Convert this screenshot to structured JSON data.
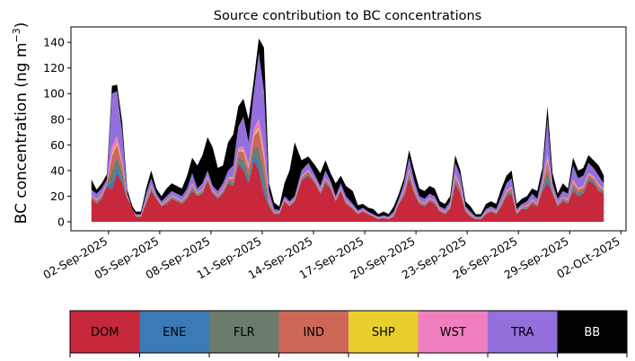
{
  "chart_data": {
    "type": "area",
    "title": "Source contribution to BC concentrations",
    "ylabel": "BC concentration (ng m",
    "ylabel_unit_sup": "−3",
    "ylabel_close": ")",
    "xlabel": "",
    "ylim": [
      -7,
      152
    ],
    "yticks": [
      0,
      20,
      40,
      60,
      80,
      100,
      120,
      140
    ],
    "x_start_day": 0,
    "x_end_day": 30,
    "xlim": [
      -1.2,
      31.3
    ],
    "xticks": [
      {
        "day": 1.0,
        "label": "02-Sep-2025"
      },
      {
        "day": 4.0,
        "label": "05-Sep-2025"
      },
      {
        "day": 7.0,
        "label": "08-Sep-2025"
      },
      {
        "day": 10.0,
        "label": "11-Sep-2025"
      },
      {
        "day": 13.0,
        "label": "14-Sep-2025"
      },
      {
        "day": 16.0,
        "label": "17-Sep-2025"
      },
      {
        "day": 19.0,
        "label": "20-Sep-2025"
      },
      {
        "day": 22.0,
        "label": "23-Sep-2025"
      },
      {
        "day": 25.0,
        "label": "26-Sep-2025"
      },
      {
        "day": 28.0,
        "label": "29-Sep-2025"
      },
      {
        "day": 31.0,
        "label": "02-Oct-2025"
      }
    ],
    "note": "Stacked areas; keyframes are [day, value] for DOM and for cumulative tops of TRA (all sources except BB) and total (with BB). ENE, FLR, IND, SHP, WST are thin layers between DOM and TRA.",
    "series": [
      {
        "name": "DOM",
        "color": "#c8283b",
        "keyframes": [
          [
            0,
            18
          ],
          [
            0.3,
            14
          ],
          [
            0.6,
            18
          ],
          [
            0.9,
            28
          ],
          [
            1.2,
            25
          ],
          [
            1.5,
            38
          ],
          [
            1.8,
            30
          ],
          [
            2.1,
            18
          ],
          [
            2.4,
            12
          ],
          [
            2.6,
            4
          ],
          [
            2.9,
            4
          ],
          [
            3.2,
            14
          ],
          [
            3.5,
            24
          ],
          [
            3.8,
            18
          ],
          [
            4.1,
            12
          ],
          [
            4.4,
            14
          ],
          [
            4.7,
            18
          ],
          [
            5.0,
            16
          ],
          [
            5.3,
            14
          ],
          [
            5.6,
            18
          ],
          [
            5.9,
            24
          ],
          [
            6.2,
            20
          ],
          [
            6.5,
            22
          ],
          [
            6.8,
            32
          ],
          [
            7.1,
            22
          ],
          [
            7.4,
            18
          ],
          [
            7.7,
            22
          ],
          [
            8.0,
            30
          ],
          [
            8.3,
            28
          ],
          [
            8.6,
            45
          ],
          [
            8.9,
            40
          ],
          [
            9.2,
            30
          ],
          [
            9.5,
            48
          ],
          [
            9.8,
            40
          ],
          [
            10.1,
            22
          ],
          [
            10.4,
            12
          ],
          [
            10.7,
            6
          ],
          [
            11.0,
            6
          ],
          [
            11.3,
            16
          ],
          [
            11.6,
            12
          ],
          [
            11.9,
            16
          ],
          [
            12.3,
            32
          ],
          [
            12.7,
            36
          ],
          [
            13.1,
            30
          ],
          [
            13.4,
            22
          ],
          [
            13.7,
            30
          ],
          [
            14.0,
            26
          ],
          [
            14.3,
            16
          ],
          [
            14.6,
            24
          ],
          [
            14.9,
            14
          ],
          [
            15.3,
            10
          ],
          [
            15.6,
            6
          ],
          [
            15.9,
            8
          ],
          [
            16.2,
            6
          ],
          [
            16.5,
            4
          ],
          [
            16.8,
            2
          ],
          [
            17.1,
            3
          ],
          [
            17.4,
            2
          ],
          [
            17.7,
            4
          ],
          [
            18.0,
            14
          ],
          [
            18.3,
            20
          ],
          [
            18.6,
            34
          ],
          [
            18.9,
            22
          ],
          [
            19.2,
            14
          ],
          [
            19.5,
            12
          ],
          [
            19.8,
            16
          ],
          [
            20.1,
            14
          ],
          [
            20.4,
            8
          ],
          [
            20.7,
            6
          ],
          [
            21.0,
            10
          ],
          [
            21.3,
            30
          ],
          [
            21.6,
            22
          ],
          [
            21.9,
            8
          ],
          [
            22.2,
            4
          ],
          [
            22.5,
            2
          ],
          [
            22.8,
            2
          ],
          [
            23.1,
            6
          ],
          [
            23.4,
            8
          ],
          [
            23.7,
            6
          ],
          [
            24.0,
            12
          ],
          [
            24.3,
            20
          ],
          [
            24.6,
            22
          ],
          [
            24.9,
            6
          ],
          [
            25.2,
            10
          ],
          [
            25.5,
            10
          ],
          [
            25.8,
            14
          ],
          [
            26.1,
            12
          ],
          [
            26.4,
            24
          ],
          [
            26.7,
            30
          ],
          [
            27.0,
            22
          ],
          [
            27.3,
            12
          ],
          [
            27.6,
            16
          ],
          [
            27.9,
            14
          ],
          [
            28.2,
            24
          ],
          [
            28.5,
            20
          ],
          [
            28.8,
            22
          ],
          [
            29.1,
            32
          ],
          [
            29.4,
            30
          ],
          [
            29.7,
            24
          ],
          [
            30,
            22
          ]
        ]
      },
      {
        "name": "ENE",
        "color": "#3b7bb5",
        "keyframes": []
      },
      {
        "name": "FLR",
        "color": "#6b7b6c",
        "keyframes": []
      },
      {
        "name": "IND",
        "color": "#cd6858",
        "keyframes": []
      },
      {
        "name": "SHP",
        "color": "#e8cf2d",
        "keyframes": []
      },
      {
        "name": "WST",
        "color": "#f07fc0",
        "keyframes": []
      },
      {
        "name": "TRA",
        "color": "#9370db",
        "keyframes": [
          [
            0,
            25
          ],
          [
            0.3,
            22
          ],
          [
            0.6,
            26
          ],
          [
            0.9,
            33
          ],
          [
            1.2,
            100
          ],
          [
            1.5,
            102
          ],
          [
            1.8,
            70
          ],
          [
            2.1,
            22
          ],
          [
            2.4,
            10
          ],
          [
            2.6,
            6
          ],
          [
            2.9,
            6
          ],
          [
            3.2,
            22
          ],
          [
            3.5,
            34
          ],
          [
            3.8,
            22
          ],
          [
            4.1,
            16
          ],
          [
            4.4,
            20
          ],
          [
            4.7,
            24
          ],
          [
            5.0,
            22
          ],
          [
            5.3,
            20
          ],
          [
            5.6,
            26
          ],
          [
            5.9,
            38
          ],
          [
            6.2,
            26
          ],
          [
            6.5,
            30
          ],
          [
            6.8,
            40
          ],
          [
            7.1,
            28
          ],
          [
            7.4,
            24
          ],
          [
            7.7,
            30
          ],
          [
            8.0,
            40
          ],
          [
            8.3,
            44
          ],
          [
            8.6,
            74
          ],
          [
            8.9,
            82
          ],
          [
            9.2,
            62
          ],
          [
            9.5,
            100
          ],
          [
            9.8,
            132
          ],
          [
            10.1,
            102
          ],
          [
            10.4,
            24
          ],
          [
            10.7,
            10
          ],
          [
            11.0,
            9
          ],
          [
            11.3,
            20
          ],
          [
            11.6,
            16
          ],
          [
            11.9,
            20
          ],
          [
            12.3,
            40
          ],
          [
            12.7,
            46
          ],
          [
            13.1,
            36
          ],
          [
            13.4,
            28
          ],
          [
            13.7,
            40
          ],
          [
            14.0,
            32
          ],
          [
            14.3,
            20
          ],
          [
            14.6,
            30
          ],
          [
            14.9,
            20
          ],
          [
            15.3,
            14
          ],
          [
            15.6,
            9
          ],
          [
            15.9,
            11
          ],
          [
            16.2,
            8
          ],
          [
            16.5,
            6
          ],
          [
            16.8,
            4
          ],
          [
            17.1,
            5
          ],
          [
            17.4,
            4
          ],
          [
            17.7,
            8
          ],
          [
            18.0,
            18
          ],
          [
            18.3,
            30
          ],
          [
            18.6,
            50
          ],
          [
            18.9,
            32
          ],
          [
            19.2,
            20
          ],
          [
            19.5,
            18
          ],
          [
            19.8,
            22
          ],
          [
            20.1,
            20
          ],
          [
            20.4,
            12
          ],
          [
            20.7,
            10
          ],
          [
            21.0,
            16
          ],
          [
            21.3,
            46
          ],
          [
            21.6,
            36
          ],
          [
            21.9,
            12
          ],
          [
            22.2,
            8
          ],
          [
            22.5,
            4
          ],
          [
            22.8,
            4
          ],
          [
            23.1,
            10
          ],
          [
            23.4,
            12
          ],
          [
            23.7,
            10
          ],
          [
            24.0,
            20
          ],
          [
            24.3,
            30
          ],
          [
            24.6,
            34
          ],
          [
            24.9,
            10
          ],
          [
            25.2,
            14
          ],
          [
            25.5,
            16
          ],
          [
            25.8,
            22
          ],
          [
            26.1,
            18
          ],
          [
            26.4,
            36
          ],
          [
            26.7,
            80
          ],
          [
            27.0,
            30
          ],
          [
            27.3,
            18
          ],
          [
            27.6,
            24
          ],
          [
            27.9,
            22
          ],
          [
            28.2,
            44
          ],
          [
            28.5,
            34
          ],
          [
            28.8,
            36
          ],
          [
            29.1,
            46
          ],
          [
            29.4,
            42
          ],
          [
            29.7,
            36
          ],
          [
            30,
            30
          ]
        ]
      },
      {
        "name": "BB",
        "color": "#000000",
        "keyframes": [
          [
            0,
            33
          ],
          [
            0.3,
            25
          ],
          [
            0.6,
            30
          ],
          [
            0.9,
            37
          ],
          [
            1.2,
            106
          ],
          [
            1.5,
            107
          ],
          [
            1.8,
            78
          ],
          [
            2.1,
            25
          ],
          [
            2.4,
            12
          ],
          [
            2.6,
            8
          ],
          [
            2.9,
            8
          ],
          [
            3.2,
            26
          ],
          [
            3.5,
            40
          ],
          [
            3.8,
            26
          ],
          [
            4.1,
            20
          ],
          [
            4.4,
            26
          ],
          [
            4.7,
            30
          ],
          [
            5.0,
            28
          ],
          [
            5.3,
            26
          ],
          [
            5.6,
            36
          ],
          [
            5.9,
            50
          ],
          [
            6.2,
            44
          ],
          [
            6.5,
            52
          ],
          [
            6.8,
            66
          ],
          [
            7.1,
            58
          ],
          [
            7.4,
            42
          ],
          [
            7.7,
            44
          ],
          [
            8.0,
            62
          ],
          [
            8.3,
            68
          ],
          [
            8.6,
            90
          ],
          [
            8.9,
            96
          ],
          [
            9.2,
            80
          ],
          [
            9.5,
            110
          ],
          [
            9.8,
            143
          ],
          [
            10.1,
            136
          ],
          [
            10.4,
            30
          ],
          [
            10.7,
            15
          ],
          [
            11.0,
            12
          ],
          [
            11.3,
            30
          ],
          [
            11.6,
            40
          ],
          [
            11.9,
            62
          ],
          [
            12.3,
            48
          ],
          [
            12.7,
            51
          ],
          [
            13.1,
            44
          ],
          [
            13.4,
            38
          ],
          [
            13.7,
            48
          ],
          [
            14.0,
            38
          ],
          [
            14.3,
            30
          ],
          [
            14.6,
            36
          ],
          [
            14.9,
            28
          ],
          [
            15.3,
            24
          ],
          [
            15.6,
            13
          ],
          [
            15.9,
            14
          ],
          [
            16.2,
            11
          ],
          [
            16.5,
            10
          ],
          [
            16.8,
            6
          ],
          [
            17.1,
            8
          ],
          [
            17.4,
            6
          ],
          [
            17.7,
            12
          ],
          [
            18.0,
            22
          ],
          [
            18.3,
            34
          ],
          [
            18.6,
            56
          ],
          [
            18.9,
            40
          ],
          [
            19.2,
            26
          ],
          [
            19.5,
            24
          ],
          [
            19.8,
            28
          ],
          [
            20.1,
            26
          ],
          [
            20.4,
            16
          ],
          [
            20.7,
            14
          ],
          [
            21.0,
            20
          ],
          [
            21.3,
            52
          ],
          [
            21.6,
            40
          ],
          [
            21.9,
            16
          ],
          [
            22.2,
            12
          ],
          [
            22.5,
            6
          ],
          [
            22.8,
            6
          ],
          [
            23.1,
            14
          ],
          [
            23.4,
            16
          ],
          [
            23.7,
            14
          ],
          [
            24.0,
            26
          ],
          [
            24.3,
            36
          ],
          [
            24.6,
            40
          ],
          [
            24.9,
            14
          ],
          [
            25.2,
            18
          ],
          [
            25.5,
            20
          ],
          [
            25.8,
            26
          ],
          [
            26.1,
            24
          ],
          [
            26.4,
            42
          ],
          [
            26.7,
            90
          ],
          [
            27.0,
            38
          ],
          [
            27.3,
            22
          ],
          [
            27.6,
            30
          ],
          [
            27.9,
            26
          ],
          [
            28.2,
            50
          ],
          [
            28.5,
            40
          ],
          [
            28.8,
            42
          ],
          [
            29.1,
            52
          ],
          [
            29.4,
            48
          ],
          [
            29.7,
            44
          ],
          [
            30,
            36
          ]
        ]
      }
    ],
    "legend": [
      "DOM",
      "ENE",
      "FLR",
      "IND",
      "SHP",
      "WST",
      "TRA",
      "BB"
    ],
    "legend_placement": "bottom"
  }
}
